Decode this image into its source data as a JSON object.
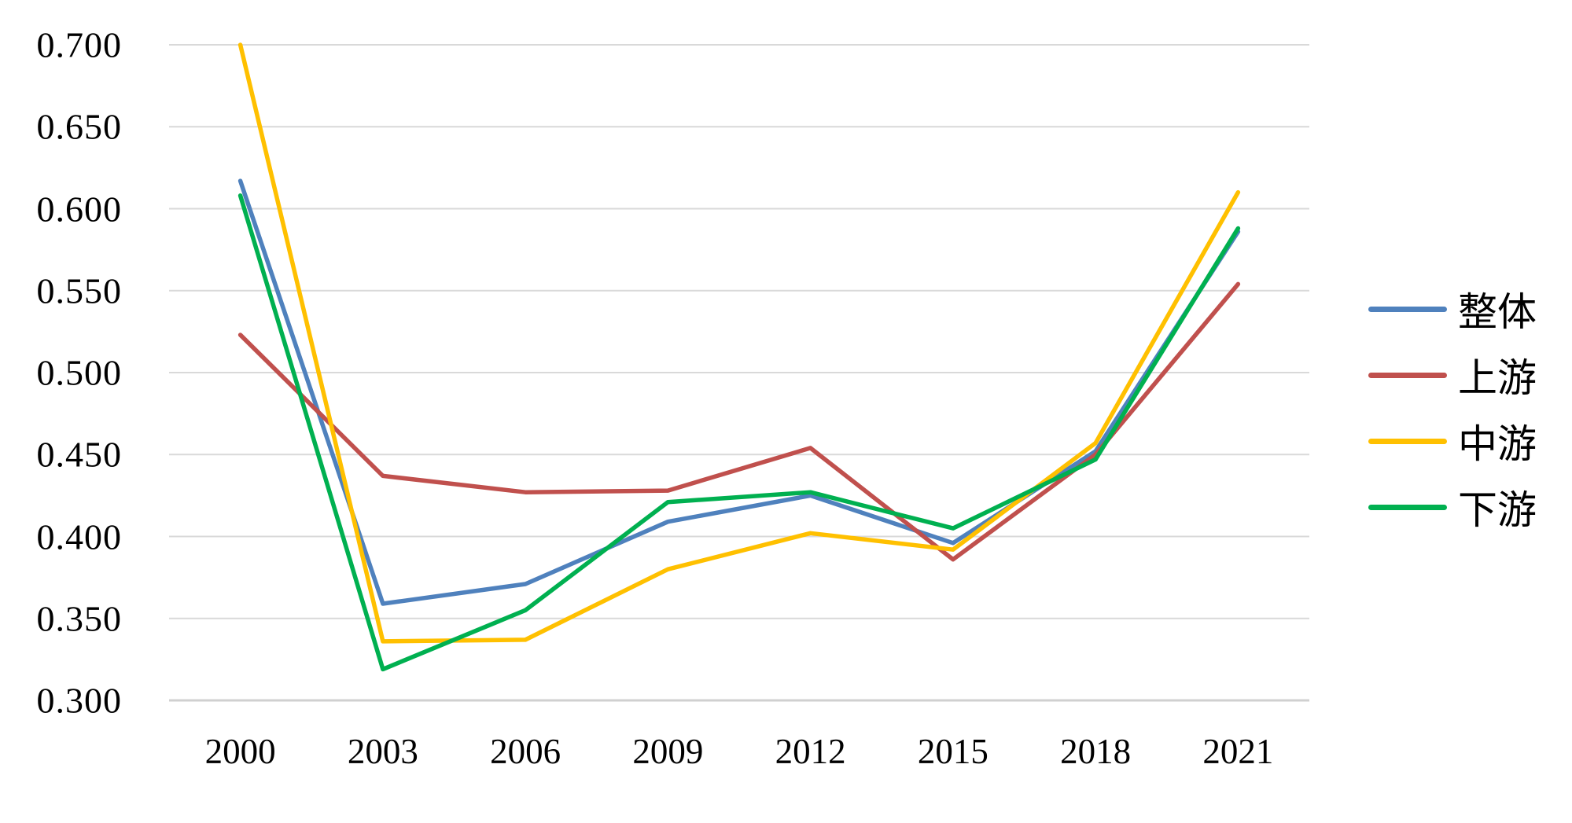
{
  "chart_data": {
    "type": "line",
    "title": "",
    "xlabel": "",
    "ylabel": "",
    "categories": [
      "2000",
      "2003",
      "2006",
      "2009",
      "2012",
      "2015",
      "2018",
      "2021"
    ],
    "series": [
      {
        "name": "整体",
        "key": "overall",
        "color": "#4F81BD",
        "values": [
          0.617,
          0.359,
          0.371,
          0.409,
          0.425,
          0.396,
          0.452,
          0.586
        ]
      },
      {
        "name": "上游",
        "key": "upstream",
        "color": "#C0504D",
        "values": [
          0.523,
          0.437,
          0.427,
          0.428,
          0.454,
          0.386,
          0.45,
          0.554
        ]
      },
      {
        "name": "中游",
        "key": "midstream",
        "color": "#FFC000",
        "values": [
          0.7,
          0.336,
          0.337,
          0.38,
          0.402,
          0.392,
          0.457,
          0.61
        ]
      },
      {
        "name": "下游",
        "key": "downstream",
        "color": "#00B050",
        "values": [
          0.608,
          0.319,
          0.355,
          0.421,
          0.427,
          0.405,
          0.447,
          0.588
        ]
      }
    ],
    "ylim": [
      0.3,
      0.7
    ],
    "y_ticks": [
      "0.300",
      "0.350",
      "0.400",
      "0.450",
      "0.500",
      "0.550",
      "0.600",
      "0.650",
      "0.700"
    ],
    "grid": true,
    "gridline_color": "#D9D9D9",
    "axis_line_color": "#D0D0D0",
    "background": "#FFFFFF",
    "legend_position": "right"
  }
}
